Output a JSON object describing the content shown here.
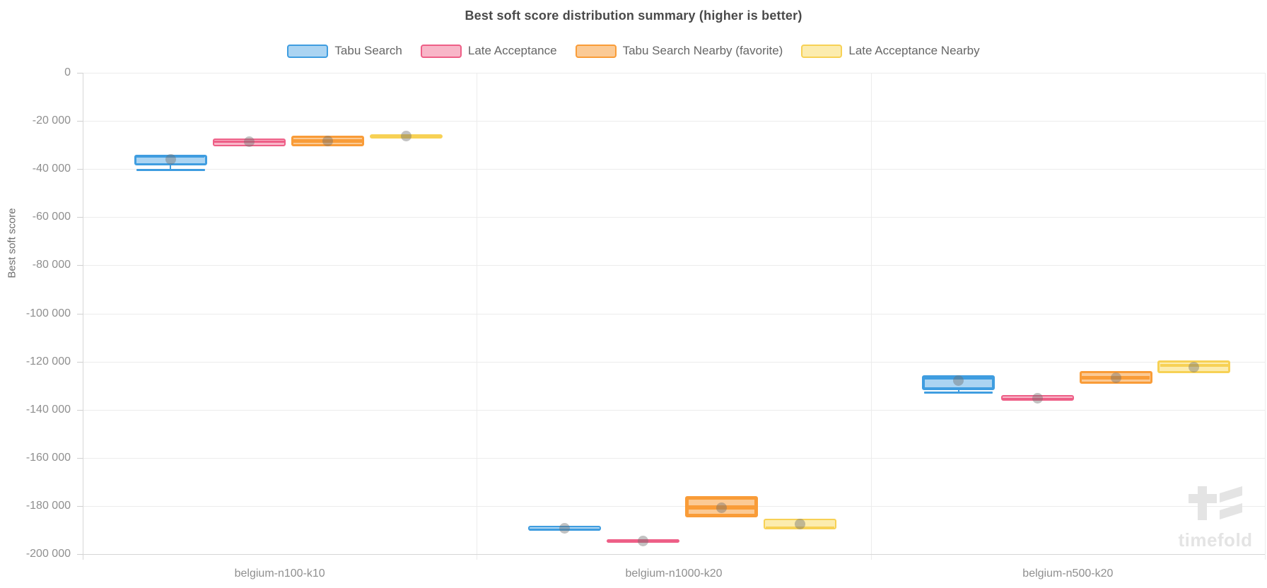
{
  "title": "Best soft score distribution summary (higher is better)",
  "watermark": "timefold",
  "colors": {
    "title_text": "#4a4a4a",
    "legend_text": "#666666",
    "tick_text": "#8f8f8f",
    "category_text": "#8f8f8f",
    "axis_name_text": "#6e6e6e",
    "gridline": "#ececec",
    "axis_line": "#d6d6d6",
    "tick_mark": "#cfcfcf",
    "watermark": "#e4e4e4",
    "mean_dot": "rgba(110,110,110,0.42)"
  },
  "chart_data": {
    "type": "boxplot",
    "title": "Best soft score distribution summary (higher is better)",
    "xlabel": "",
    "ylabel": "Best soft score",
    "ylim": [
      -200000,
      0
    ],
    "grid": true,
    "legend_position": "top-center",
    "y_ticks": [
      {
        "value": 0,
        "label": "0"
      },
      {
        "value": -20000,
        "label": "-20 000"
      },
      {
        "value": -40000,
        "label": "-40 000"
      },
      {
        "value": -60000,
        "label": "-60 000"
      },
      {
        "value": -80000,
        "label": "-80 000"
      },
      {
        "value": -100000,
        "label": "-100 000"
      },
      {
        "value": -120000,
        "label": "-120 000"
      },
      {
        "value": -140000,
        "label": "-140 000"
      },
      {
        "value": -160000,
        "label": "-160 000"
      },
      {
        "value": -180000,
        "label": "-180 000"
      },
      {
        "value": -200000,
        "label": "-200 000"
      }
    ],
    "categories": [
      "belgium-n100-k10",
      "belgium-n1000-k20",
      "belgium-n500-k20"
    ],
    "series": [
      {
        "name": "Tabu Search",
        "border_color": "#3f9de0",
        "fill_color": "#abd4f2",
        "boxes": [
          {
            "q3": -34000,
            "median": -34600,
            "q1": -38600,
            "mean": -35900,
            "low": -40300
          },
          {
            "q3": -188300,
            "median": -189600,
            "q1": -190300,
            "mean": -189200
          },
          {
            "q3": -125600,
            "median": -126400,
            "q1": -131900,
            "mean": -128000,
            "low": -132700
          }
        ]
      },
      {
        "name": "Late Acceptance",
        "border_color": "#ee5f87",
        "fill_color": "#f8b6c8",
        "boxes": [
          {
            "q3": -27400,
            "median": -28500,
            "q1": -30400,
            "mean": -28700
          },
          {
            "q3": -193800,
            "median": -194500,
            "q1": -195200,
            "mean": -194500
          },
          {
            "q3": -134000,
            "median": -135300,
            "q1": -136200,
            "mean": -135200
          }
        ]
      },
      {
        "name": "Tabu Search Nearby (favorite)",
        "border_color": "#f99c38",
        "fill_color": "#fbca95",
        "boxes": [
          {
            "q3": -26100,
            "median": -28200,
            "q1": -30600,
            "mean": -28200
          },
          {
            "q3": -176000,
            "median": -180500,
            "q1": -184600,
            "mean": -180700
          },
          {
            "q3": -124000,
            "median": -126500,
            "q1": -129300,
            "mean": -126600
          }
        ]
      },
      {
        "name": "Late Acceptance Nearby",
        "border_color": "#f7d155",
        "fill_color": "#fcecae",
        "boxes": [
          {
            "q3": -25600,
            "median": -26400,
            "q1": -27300,
            "mean": -26300
          },
          {
            "q3": -185400,
            "median": -189100,
            "q1": -189700,
            "mean": -187400
          },
          {
            "q3": -119500,
            "median": -121500,
            "q1": -124800,
            "mean": -122300
          }
        ]
      }
    ]
  }
}
